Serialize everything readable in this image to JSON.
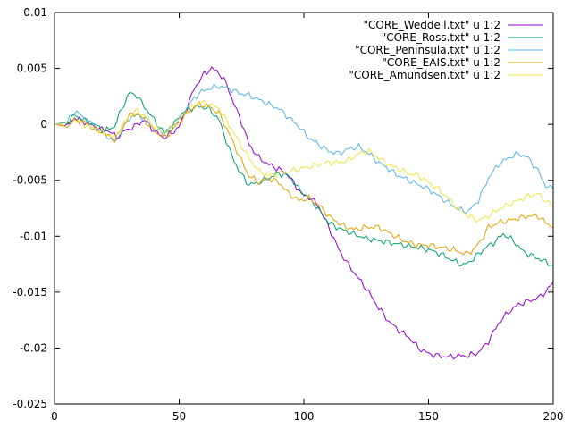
{
  "chart_data": {
    "type": "line",
    "title": "",
    "xlabel": "",
    "ylabel": "",
    "xlim": [
      0,
      200
    ],
    "ylim": [
      -0.025,
      0.01
    ],
    "grid": false,
    "legend_position": "top-right",
    "x_ticks": [
      0,
      50,
      100,
      150,
      200
    ],
    "x_tick_labels": [
      "0",
      "50",
      "100",
      "150",
      "200"
    ],
    "y_ticks": [
      -0.025,
      -0.02,
      -0.015,
      -0.01,
      -0.005,
      0,
      0.005,
      0.01
    ],
    "y_tick_labels": [
      "-0.025",
      "-0.02",
      "-0.015",
      "-0.01",
      "-0.005",
      "0",
      "0.005",
      "0.01"
    ],
    "series": [
      {
        "name": "\"CORE_Weddell.txt\" u 1:2",
        "color": "#9400d3",
        "points": [
          [
            0,
            0
          ],
          [
            5,
            -0.0002
          ],
          [
            8,
            0.0006
          ],
          [
            12,
            0.0002
          ],
          [
            18,
            -0.0004
          ],
          [
            22,
            -0.0006
          ],
          [
            25,
            -0.0012
          ],
          [
            28,
            -0.0006
          ],
          [
            32,
            -0.0002
          ],
          [
            36,
            0.0004
          ],
          [
            40,
            -0.0006
          ],
          [
            44,
            -0.0012
          ],
          [
            47,
            -0.0008
          ],
          [
            50,
            -0.0002
          ],
          [
            53,
            0.0014
          ],
          [
            56,
            0.0032
          ],
          [
            60,
            0.0045
          ],
          [
            63,
            0.005
          ],
          [
            66,
            0.0046
          ],
          [
            69,
            0.0036
          ],
          [
            72,
            0.0018
          ],
          [
            75,
            0.0002
          ],
          [
            78,
            -0.0018
          ],
          [
            82,
            -0.003
          ],
          [
            86,
            -0.0036
          ],
          [
            90,
            -0.004
          ],
          [
            94,
            -0.0046
          ],
          [
            97,
            -0.0056
          ],
          [
            100,
            -0.0064
          ],
          [
            103,
            -0.0066
          ],
          [
            106,
            -0.0074
          ],
          [
            110,
            -0.0092
          ],
          [
            114,
            -0.0112
          ],
          [
            118,
            -0.0126
          ],
          [
            122,
            -0.0138
          ],
          [
            126,
            -0.015
          ],
          [
            130,
            -0.0164
          ],
          [
            134,
            -0.0176
          ],
          [
            138,
            -0.0184
          ],
          [
            142,
            -0.019
          ],
          [
            146,
            -0.02
          ],
          [
            150,
            -0.0205
          ],
          [
            154,
            -0.0207
          ],
          [
            158,
            -0.0208
          ],
          [
            162,
            -0.0207
          ],
          [
            166,
            -0.0207
          ],
          [
            170,
            -0.0204
          ],
          [
            174,
            -0.0194
          ],
          [
            178,
            -0.0178
          ],
          [
            182,
            -0.0168
          ],
          [
            186,
            -0.0161
          ],
          [
            190,
            -0.0158
          ],
          [
            194,
            -0.0155
          ],
          [
            197,
            -0.015
          ],
          [
            200,
            -0.0141
          ]
        ]
      },
      {
        "name": "\"CORE_Ross.txt\" u 1:2",
        "color": "#009e73",
        "points": [
          [
            0,
            0
          ],
          [
            5,
            0.0002
          ],
          [
            8,
            0.0008
          ],
          [
            12,
            0.0004
          ],
          [
            16,
            0
          ],
          [
            20,
            -0.0006
          ],
          [
            24,
            -0.0002
          ],
          [
            27,
            0.0014
          ],
          [
            30,
            0.0028
          ],
          [
            33,
            0.0026
          ],
          [
            36,
            0.0016
          ],
          [
            40,
            0.0004
          ],
          [
            44,
            -0.0008
          ],
          [
            47,
            -0.0004
          ],
          [
            50,
            0.0008
          ],
          [
            54,
            0.0014
          ],
          [
            58,
            0.0016
          ],
          [
            62,
            0.0014
          ],
          [
            66,
            0.0004
          ],
          [
            70,
            -0.0022
          ],
          [
            74,
            -0.0042
          ],
          [
            78,
            -0.0054
          ],
          [
            82,
            -0.0052
          ],
          [
            86,
            -0.0048
          ],
          [
            90,
            -0.0044
          ],
          [
            94,
            -0.0046
          ],
          [
            98,
            -0.0058
          ],
          [
            102,
            -0.0066
          ],
          [
            106,
            -0.0076
          ],
          [
            110,
            -0.0088
          ],
          [
            115,
            -0.0094
          ],
          [
            120,
            -0.0098
          ],
          [
            125,
            -0.0102
          ],
          [
            130,
            -0.0104
          ],
          [
            135,
            -0.0106
          ],
          [
            140,
            -0.0108
          ],
          [
            145,
            -0.011
          ],
          [
            150,
            -0.0112
          ],
          [
            155,
            -0.0116
          ],
          [
            160,
            -0.0122
          ],
          [
            164,
            -0.0126
          ],
          [
            167,
            -0.0122
          ],
          [
            170,
            -0.0116
          ],
          [
            173,
            -0.011
          ],
          [
            176,
            -0.0106
          ],
          [
            180,
            -0.0098
          ],
          [
            184,
            -0.0104
          ],
          [
            188,
            -0.0114
          ],
          [
            192,
            -0.0118
          ],
          [
            196,
            -0.0122
          ],
          [
            200,
            -0.0126
          ]
        ]
      },
      {
        "name": "\"CORE_Peninsula.txt\" u 1:2",
        "color": "#56b4e9",
        "points": [
          [
            0,
            0
          ],
          [
            5,
            0.0002
          ],
          [
            8,
            0.0012
          ],
          [
            12,
            0.0006
          ],
          [
            16,
            -0.0002
          ],
          [
            20,
            -0.0008
          ],
          [
            24,
            -0.0016
          ],
          [
            27,
            -0.0006
          ],
          [
            30,
            0.0006
          ],
          [
            33,
            0.0008
          ],
          [
            36,
            0.0006
          ],
          [
            40,
            -0.0004
          ],
          [
            44,
            -0.0008
          ],
          [
            47,
            -0.0002
          ],
          [
            50,
            0.0004
          ],
          [
            54,
            0.0018
          ],
          [
            58,
            0.0028
          ],
          [
            62,
            0.0032
          ],
          [
            66,
            0.0034
          ],
          [
            70,
            0.0032
          ],
          [
            74,
            0.0028
          ],
          [
            78,
            0.0026
          ],
          [
            82,
            0.0022
          ],
          [
            86,
            0.0018
          ],
          [
            90,
            0.0014
          ],
          [
            94,
            0.0006
          ],
          [
            98,
            -0.0002
          ],
          [
            102,
            -0.0012
          ],
          [
            106,
            -0.0018
          ],
          [
            110,
            -0.0024
          ],
          [
            114,
            -0.0026
          ],
          [
            118,
            -0.0022
          ],
          [
            122,
            -0.002
          ],
          [
            126,
            -0.0026
          ],
          [
            130,
            -0.0034
          ],
          [
            134,
            -0.004
          ],
          [
            138,
            -0.0046
          ],
          [
            142,
            -0.005
          ],
          [
            146,
            -0.0054
          ],
          [
            150,
            -0.0058
          ],
          [
            154,
            -0.0064
          ],
          [
            158,
            -0.007
          ],
          [
            162,
            -0.0076
          ],
          [
            166,
            -0.0078
          ],
          [
            170,
            -0.0068
          ],
          [
            174,
            -0.0048
          ],
          [
            178,
            -0.0036
          ],
          [
            182,
            -0.003
          ],
          [
            186,
            -0.0026
          ],
          [
            190,
            -0.003
          ],
          [
            194,
            -0.0042
          ],
          [
            197,
            -0.0055
          ],
          [
            200,
            -0.0058
          ]
        ]
      },
      {
        "name": "\"CORE_EAIS.txt\" u 1:2",
        "color": "#e69f00",
        "points": [
          [
            0,
            0
          ],
          [
            5,
            -0.0002
          ],
          [
            8,
            0.0004
          ],
          [
            12,
            0.0002
          ],
          [
            16,
            -0.0004
          ],
          [
            20,
            -0.0008
          ],
          [
            24,
            -0.0014
          ],
          [
            27,
            -0.0004
          ],
          [
            30,
            0.0008
          ],
          [
            33,
            0.001
          ],
          [
            36,
            0.0004
          ],
          [
            40,
            -0.0006
          ],
          [
            44,
            -0.0012
          ],
          [
            47,
            -0.0006
          ],
          [
            50,
            0.0002
          ],
          [
            54,
            0.0012
          ],
          [
            58,
            0.0018
          ],
          [
            62,
            0.0016
          ],
          [
            66,
            0.001
          ],
          [
            70,
            -0.0008
          ],
          [
            74,
            -0.0028
          ],
          [
            78,
            -0.0046
          ],
          [
            82,
            -0.0052
          ],
          [
            86,
            -0.0048
          ],
          [
            90,
            -0.0052
          ],
          [
            94,
            -0.0062
          ],
          [
            98,
            -0.0068
          ],
          [
            102,
            -0.0066
          ],
          [
            106,
            -0.0072
          ],
          [
            110,
            -0.0082
          ],
          [
            115,
            -0.009
          ],
          [
            120,
            -0.0094
          ],
          [
            125,
            -0.0092
          ],
          [
            130,
            -0.0092
          ],
          [
            135,
            -0.0098
          ],
          [
            140,
            -0.0104
          ],
          [
            145,
            -0.0108
          ],
          [
            150,
            -0.0108
          ],
          [
            155,
            -0.011
          ],
          [
            160,
            -0.0112
          ],
          [
            165,
            -0.0116
          ],
          [
            168,
            -0.0112
          ],
          [
            171,
            -0.0104
          ],
          [
            174,
            -0.0092
          ],
          [
            178,
            -0.0088
          ],
          [
            182,
            -0.0086
          ],
          [
            186,
            -0.0084
          ],
          [
            190,
            -0.0082
          ],
          [
            194,
            -0.0082
          ],
          [
            197,
            -0.0088
          ],
          [
            200,
            -0.0092
          ]
        ]
      },
      {
        "name": "\"CORE_Amundsen.txt\" u 1:2",
        "color": "#f0e442",
        "points": [
          [
            0,
            0
          ],
          [
            5,
            0
          ],
          [
            8,
            0.0004
          ],
          [
            12,
            0
          ],
          [
            16,
            -0.0004
          ],
          [
            20,
            -0.0008
          ],
          [
            24,
            -0.0012
          ],
          [
            27,
            -0.0002
          ],
          [
            30,
            0.0008
          ],
          [
            33,
            0.0012
          ],
          [
            36,
            0.0008
          ],
          [
            40,
            -0.0002
          ],
          [
            44,
            -0.0008
          ],
          [
            47,
            -0.0002
          ],
          [
            50,
            0.0004
          ],
          [
            54,
            0.0014
          ],
          [
            58,
            0.002
          ],
          [
            62,
            0.0018
          ],
          [
            66,
            0.0014
          ],
          [
            70,
            0
          ],
          [
            74,
            -0.0016
          ],
          [
            78,
            -0.003
          ],
          [
            82,
            -0.0042
          ],
          [
            86,
            -0.0046
          ],
          [
            90,
            -0.0044
          ],
          [
            94,
            -0.0042
          ],
          [
            98,
            -0.004
          ],
          [
            102,
            -0.0038
          ],
          [
            106,
            -0.0036
          ],
          [
            110,
            -0.0034
          ],
          [
            114,
            -0.0034
          ],
          [
            118,
            -0.0032
          ],
          [
            122,
            -0.0026
          ],
          [
            126,
            -0.0024
          ],
          [
            130,
            -0.003
          ],
          [
            134,
            -0.0036
          ],
          [
            138,
            -0.004
          ],
          [
            142,
            -0.0044
          ],
          [
            146,
            -0.0046
          ],
          [
            150,
            -0.0052
          ],
          [
            154,
            -0.0058
          ],
          [
            158,
            -0.0066
          ],
          [
            162,
            -0.0076
          ],
          [
            166,
            -0.0082
          ],
          [
            170,
            -0.0086
          ],
          [
            174,
            -0.0082
          ],
          [
            178,
            -0.0076
          ],
          [
            182,
            -0.0072
          ],
          [
            186,
            -0.0068
          ],
          [
            190,
            -0.0064
          ],
          [
            194,
            -0.0062
          ],
          [
            197,
            -0.0068
          ],
          [
            200,
            -0.0074
          ]
        ]
      }
    ]
  }
}
